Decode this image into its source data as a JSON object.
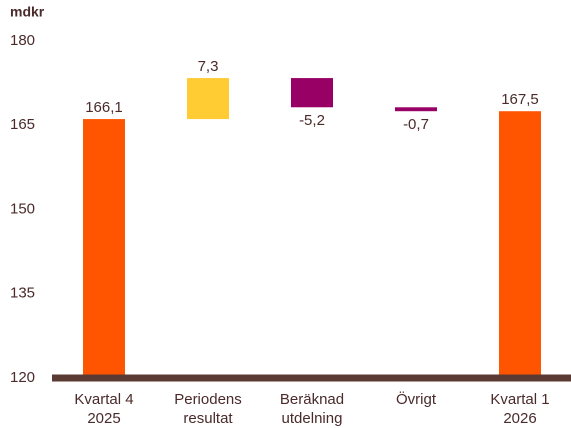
{
  "chart_data": {
    "type": "waterfall",
    "ylabel": "mdkr",
    "categories": [
      "Kvartal 4\n2025",
      "Periodens\nresultat",
      "Beräknad\nutdelning",
      "Övrigt",
      "Kvartal 1\n2026"
    ],
    "values": [
      166.1,
      7.3,
      -5.2,
      -0.7,
      167.5
    ],
    "value_labels": [
      "166,1",
      "7,3",
      "-5,2",
      "-0,7",
      "167,5"
    ],
    "totals": [
      true,
      false,
      false,
      false,
      true
    ],
    "colors": [
      "#ff5500",
      "#ffcc33",
      "#990066",
      "#990066",
      "#ff5500"
    ],
    "ylim": [
      120,
      180
    ],
    "yticks": [
      120,
      135,
      150,
      165,
      180
    ],
    "grid": false
  }
}
